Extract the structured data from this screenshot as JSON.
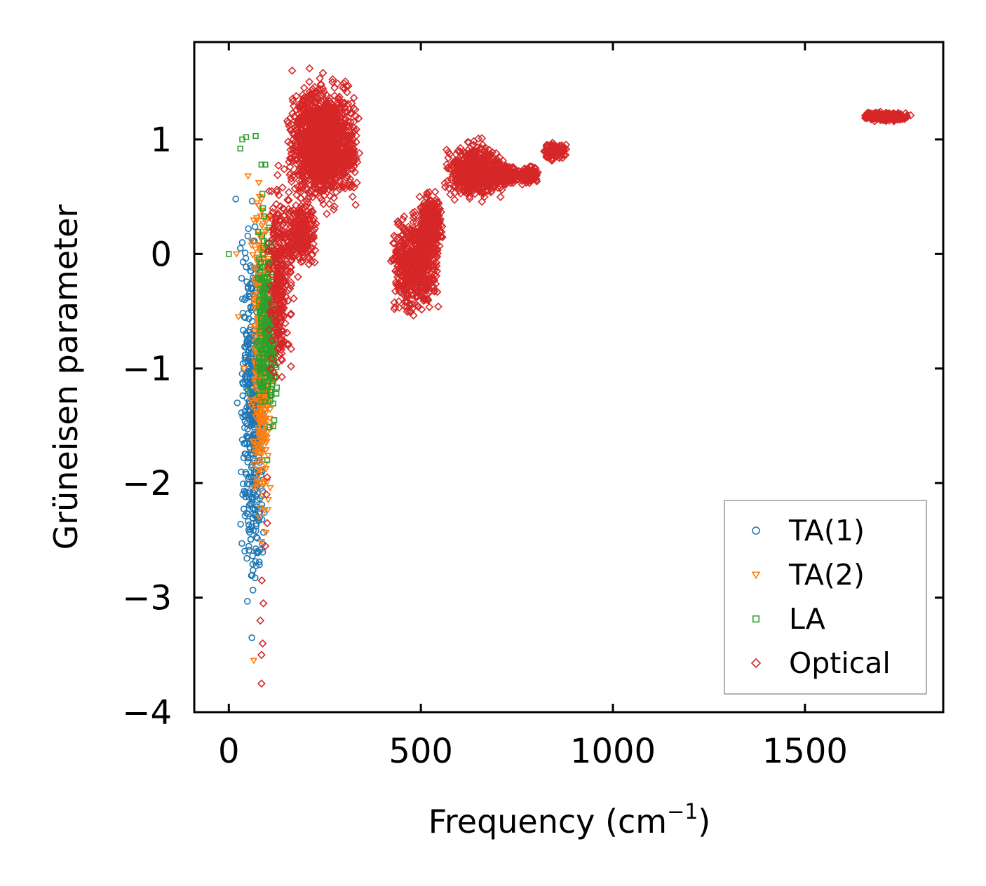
{
  "chart_data": {
    "type": "scatter",
    "xlabel": "Frequency (cm",
    "xlabel_sup": "−1",
    "xlabel_close": ")",
    "ylabel": "Grüneisen parameter",
    "xlim": [
      -90,
      1860
    ],
    "ylim": [
      -4.0,
      1.85
    ],
    "xticks": [
      0,
      500,
      1000,
      1500
    ],
    "xtick_labels": [
      "0",
      "500",
      "1000",
      "1500"
    ],
    "yticks": [
      1,
      0,
      -1,
      -2,
      -3,
      -4
    ],
    "ytick_labels": [
      "1",
      "0",
      "−1",
      "−2",
      "−3",
      "−4"
    ],
    "legend_position": "lower right",
    "series": [
      {
        "name": "TA(1)",
        "marker": "circle",
        "color": "#1f77b4",
        "clusters": [
          {
            "x": [
              30,
              95
            ],
            "y": [
              -3.35,
              0.62
            ],
            "n": 460
          }
        ],
        "points": [
          [
            18,
            0.48
          ],
          [
            22,
            -1.3
          ],
          [
            60,
            -3.35
          ],
          [
            40,
            -0.55
          ],
          [
            35,
            0.1
          ],
          [
            45,
            -1.05
          ],
          [
            55,
            -2.4
          ],
          [
            50,
            -0.3
          ],
          [
            30,
            0.05
          ]
        ]
      },
      {
        "name": "TA(2)",
        "marker": "triangle-down",
        "color": "#ff7f0e",
        "clusters": [
          {
            "x": [
              55,
              115
            ],
            "y": [
              -2.7,
              0.9
            ],
            "n": 380
          }
        ],
        "points": [
          [
            65,
            -3.55
          ],
          [
            20,
            0.0
          ],
          [
            25,
            -0.55
          ],
          [
            40,
            -1.0
          ],
          [
            50,
            0.68
          ],
          [
            80,
            0.5
          ]
        ]
      },
      {
        "name": "LA",
        "marker": "square",
        "color": "#2ca02c",
        "clusters": [
          {
            "x": [
              70,
              130
            ],
            "y": [
              -1.8,
              0.65
            ],
            "n": 300
          }
        ],
        "points": [
          [
            35,
            1.0
          ],
          [
            45,
            1.02
          ],
          [
            70,
            1.03
          ],
          [
            30,
            0.92
          ],
          [
            0,
            0.0
          ],
          [
            85,
            0.78
          ],
          [
            95,
            0.78
          ],
          [
            100,
            -1.8
          ],
          [
            50,
            -1.2
          ]
        ]
      },
      {
        "name": "Optical",
        "marker": "diamond",
        "color": "#d62728",
        "clusters": [
          {
            "x": [
              100,
              170
            ],
            "y": [
              -1.3,
              0.95
            ],
            "n": 320
          },
          {
            "x": [
              150,
              340
            ],
            "y": [
              0.35,
              1.6
            ],
            "n": 1400
          },
          {
            "x": [
              150,
              230
            ],
            "y": [
              -0.2,
              0.6
            ],
            "n": 250
          },
          {
            "x": [
              420,
              550
            ],
            "y": [
              -0.62,
              0.45
            ],
            "n": 600
          },
          {
            "x": [
              495,
              560
            ],
            "y": [
              -0.1,
              0.62
            ],
            "n": 280
          },
          {
            "x": [
              560,
              720
            ],
            "y": [
              0.4,
              1.05
            ],
            "n": 520
          },
          {
            "x": [
              690,
              750
            ],
            "y": [
              0.58,
              0.8
            ],
            "n": 170
          },
          {
            "x": [
              745,
              810
            ],
            "y": [
              0.6,
              0.78
            ],
            "n": 120
          },
          {
            "x": [
              815,
              880
            ],
            "y": [
              0.8,
              1.0
            ],
            "n": 110
          },
          {
            "x": [
              1650,
              1780
            ],
            "y": [
              1.15,
              1.25
            ],
            "n": 260
          }
        ],
        "points": [
          [
            85,
            -3.75
          ],
          [
            85,
            -3.5
          ],
          [
            88,
            -3.4
          ],
          [
            82,
            -3.2
          ],
          [
            90,
            -3.05
          ],
          [
            86,
            -2.85
          ],
          [
            95,
            -2.55
          ],
          [
            100,
            -2.35
          ],
          [
            98,
            -2.1
          ],
          [
            100,
            -1.95
          ],
          [
            165,
            1.6
          ],
          [
            210,
            1.62
          ],
          [
            245,
            1.58
          ],
          [
            270,
            1.5
          ],
          [
            310,
            1.0
          ],
          [
            340,
            0.88
          ],
          [
            255,
            0.35
          ],
          [
            180,
            -0.2
          ],
          [
            1775,
            1.21
          ]
        ]
      }
    ]
  }
}
